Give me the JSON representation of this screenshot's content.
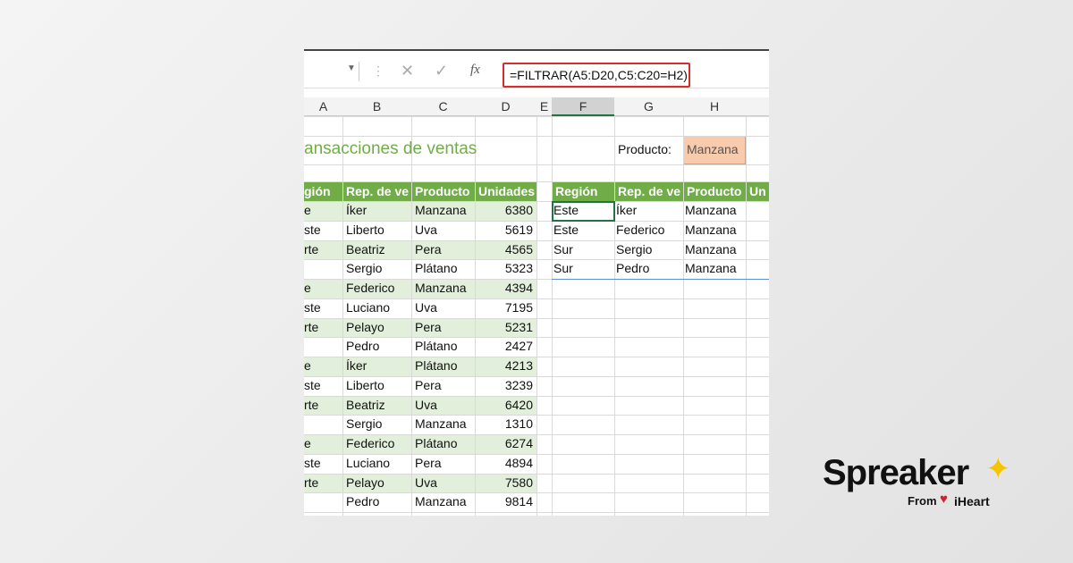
{
  "formula": "=FILTRAR(A5:D20,C5:C20=H2)",
  "columns": [
    "A",
    "B",
    "C",
    "D",
    "E",
    "F",
    "G",
    "H"
  ],
  "sheet_title": "ansacciones de ventas",
  "filter_label": "Producto:",
  "filter_value": "Manzana",
  "left_table": {
    "header": [
      "gión",
      "Rep. de ve",
      "Producto",
      "Unidades"
    ],
    "rows": [
      [
        "e",
        "Íker",
        "Manzana",
        6380
      ],
      [
        "ste",
        "Liberto",
        "Uva",
        5619
      ],
      [
        "rte",
        "Beatriz",
        "Pera",
        4565
      ],
      [
        null,
        "Sergio",
        "Plátano",
        5323
      ],
      [
        "e",
        "Federico",
        "Manzana",
        4394
      ],
      [
        "ste",
        "Luciano",
        "Uva",
        7195
      ],
      [
        "rte",
        "Pelayo",
        "Pera",
        5231
      ],
      [
        null,
        "Pedro",
        "Plátano",
        2427
      ],
      [
        "e",
        "Íker",
        "Plátano",
        4213
      ],
      [
        "ste",
        "Liberto",
        "Pera",
        3239
      ],
      [
        "rte",
        "Beatriz",
        "Uva",
        6420
      ],
      [
        null,
        "Sergio",
        "Manzana",
        1310
      ],
      [
        "e",
        "Federico",
        "Plátano",
        6274
      ],
      [
        "ste",
        "Luciano",
        "Pera",
        4894
      ],
      [
        "rte",
        "Pelayo",
        "Uva",
        7580
      ],
      [
        null,
        "Pedro",
        "Manzana",
        9814
      ]
    ]
  },
  "right_table": {
    "header": [
      "Región",
      "Rep. de ve",
      "Producto",
      "Un"
    ],
    "rows": [
      [
        "Este",
        "Íker",
        "Manzana"
      ],
      [
        "Este",
        "Federico",
        "Manzana"
      ],
      [
        "Sur",
        "Sergio",
        "Manzana"
      ],
      [
        "Sur",
        "Pedro",
        "Manzana"
      ]
    ]
  },
  "logo": {
    "brand": "Spreaker",
    "from": "From",
    "partner": "iHeart"
  }
}
